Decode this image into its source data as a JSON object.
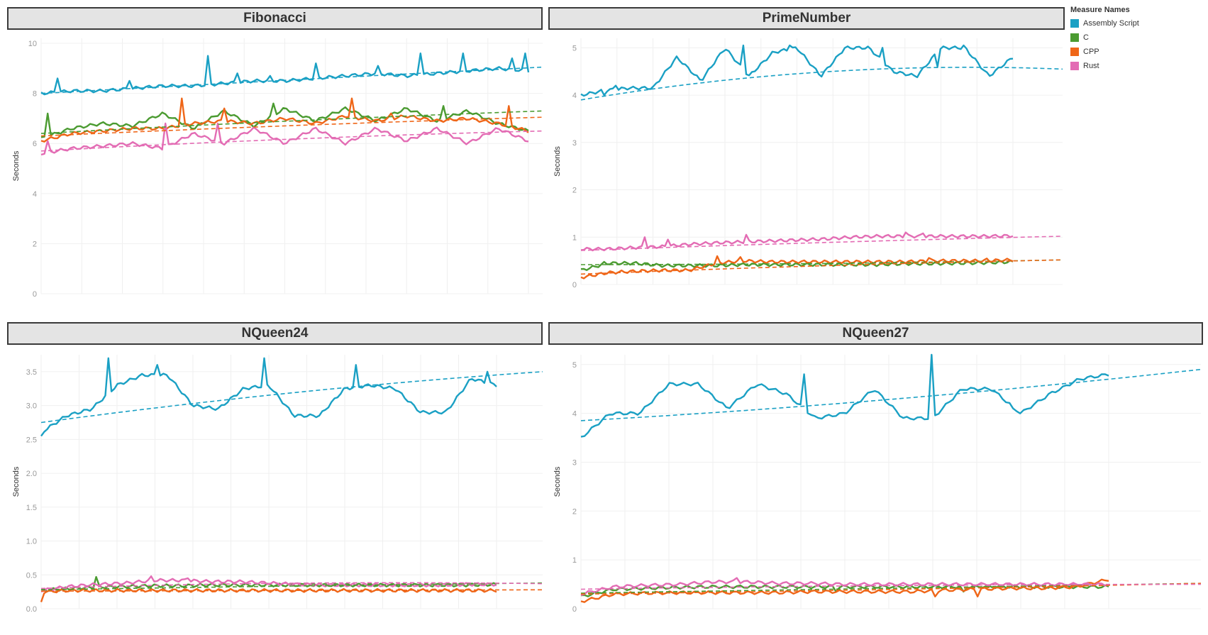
{
  "legend": {
    "title": "Measure Names",
    "items": [
      {
        "label": "Assembly Script",
        "color": "#1aa0c4"
      },
      {
        "label": "C",
        "color": "#4b9b31"
      },
      {
        "label": "CPP",
        "color": "#ef6618"
      },
      {
        "label": "Rust",
        "color": "#e36cb4"
      }
    ]
  },
  "chart_data": [
    {
      "type": "line",
      "title": "Fibonacci",
      "ylabel": "Seconds",
      "xlabel": "",
      "ylim": [
        0,
        10.2
      ],
      "yticks": [
        0,
        2,
        4,
        6,
        8,
        10
      ],
      "tick_decimals": 0,
      "grid": true,
      "trend_lines": true,
      "legend": "top-right",
      "n_points": 150,
      "series": [
        {
          "name": "Assembly Script",
          "base": [
            8.0,
            8.1,
            8.1,
            8.2,
            8.3,
            8.3,
            8.4,
            8.5,
            8.5,
            8.6,
            8.7,
            8.8,
            8.7,
            8.8,
            8.9,
            9.0,
            8.9
          ],
          "spikes": [
            [
              5,
              8.6
            ],
            [
              27,
              8.5
            ],
            [
              51,
              9.5
            ],
            [
              60,
              8.8
            ],
            [
              70,
              8.7
            ],
            [
              84,
              9.2
            ],
            [
              103,
              9.1
            ],
            [
              116,
              9.6
            ],
            [
              129,
              9.6
            ],
            [
              144,
              9.4
            ],
            [
              148,
              9.6
            ]
          ]
        },
        {
          "name": "C",
          "base": [
            6.2,
            6.6,
            6.8,
            6.7,
            7.2,
            6.6,
            7.3,
            6.7,
            7.4,
            6.9,
            7.4,
            6.9,
            7.4,
            6.9,
            7.3,
            6.8,
            6.5
          ],
          "spikes": [
            [
              2,
              7.2
            ],
            [
              71,
              7.6
            ],
            [
              123,
              7.5
            ]
          ]
        },
        {
          "name": "CPP",
          "base": [
            6.1,
            6.4,
            6.5,
            6.6,
            6.6,
            6.8,
            6.9,
            6.8,
            7.0,
            6.8,
            7.1,
            6.9,
            7.1,
            6.9,
            7.0,
            6.8,
            6.5
          ],
          "spikes": [
            [
              43,
              7.8
            ],
            [
              56,
              7.4
            ],
            [
              95,
              7.8
            ],
            [
              107,
              7.2
            ],
            [
              143,
              7.5
            ]
          ]
        },
        {
          "name": "Rust",
          "base": [
            5.6,
            5.8,
            5.9,
            6.0,
            5.8,
            6.4,
            6.0,
            6.6,
            6.0,
            6.6,
            6.0,
            6.6,
            6.1,
            6.6,
            6.0,
            6.6,
            6.1
          ],
          "spikes": [
            [
              2,
              6.1
            ],
            [
              38,
              6.8
            ],
            [
              54,
              6.8
            ]
          ]
        }
      ],
      "trends": [
        {
          "name": "Assembly Script",
          "values": [
            8.0,
            8.55,
            9.05
          ]
        },
        {
          "name": "C",
          "values": [
            6.4,
            6.95,
            7.3
          ]
        },
        {
          "name": "CPP",
          "values": [
            6.3,
            6.75,
            7.05
          ]
        },
        {
          "name": "Rust",
          "values": [
            5.7,
            6.25,
            6.5
          ]
        }
      ]
    },
    {
      "type": "line",
      "title": "PrimeNumber",
      "ylabel": "Seconds",
      "xlabel": "",
      "ylim": [
        0,
        5.2
      ],
      "yticks": [
        0,
        1,
        2,
        3,
        4,
        5
      ],
      "tick_decimals": 0,
      "grid": true,
      "trend_lines": true,
      "n_points": 150,
      "series": [
        {
          "name": "Assembly Script",
          "base": [
            4.0,
            4.1,
            4.15,
            4.15,
            4.8,
            4.3,
            5.0,
            4.4,
            4.9,
            5.0,
            4.4,
            5.0,
            5.0,
            4.5,
            4.4,
            5.0,
            5.0,
            4.4,
            4.8
          ],
          "spikes": [
            [
              8,
              4.0
            ],
            [
              12,
              4.2
            ],
            [
              56,
              5.05
            ],
            [
              72,
              5.05
            ],
            [
              104,
              5.0
            ],
            [
              123,
              4.6
            ],
            [
              132,
              5.05
            ]
          ]
        },
        {
          "name": "C",
          "base": [
            0.3,
            0.45,
            0.45,
            0.4,
            0.4,
            0.4,
            0.42,
            0.42,
            0.42,
            0.42,
            0.42,
            0.42,
            0.44,
            0.44,
            0.45,
            0.46,
            0.48
          ],
          "spikes": [
            [
              8,
              0.48
            ]
          ]
        },
        {
          "name": "CPP",
          "base": [
            0.15,
            0.25,
            0.28,
            0.3,
            0.3,
            0.45,
            0.5,
            0.48,
            0.48,
            0.48,
            0.48,
            0.48,
            0.48,
            0.5,
            0.5,
            0.5,
            0.52
          ],
          "spikes": [
            [
              47,
              0.6
            ],
            [
              55,
              0.58
            ],
            [
              120,
              0.56
            ],
            [
              140,
              0.55
            ]
          ]
        },
        {
          "name": "Rust",
          "base": [
            0.75,
            0.75,
            0.78,
            0.8,
            0.85,
            0.88,
            0.9,
            0.92,
            0.94,
            0.96,
            1.0,
            1.02,
            1.02,
            1.02,
            1.02,
            1.02,
            1.03
          ],
          "spikes": [
            [
              22,
              1.0
            ],
            [
              30,
              0.95
            ],
            [
              57,
              1.05
            ],
            [
              112,
              1.1
            ],
            [
              118,
              1.08
            ]
          ]
        }
      ],
      "trends": [
        {
          "name": "Assembly Script",
          "values": [
            3.9,
            4.75,
            4.55
          ]
        },
        {
          "name": "C",
          "values": [
            0.42,
            0.42,
            0.52
          ]
        },
        {
          "name": "CPP",
          "values": [
            0.22,
            0.42,
            0.52
          ]
        },
        {
          "name": "Rust",
          "values": [
            0.72,
            0.9,
            1.02
          ]
        }
      ]
    },
    {
      "type": "line",
      "title": "NQueen24",
      "ylabel": "Seconds",
      "xlabel": "",
      "ylim": [
        0,
        3.75
      ],
      "yticks": [
        0.0,
        0.5,
        1.0,
        1.5,
        2.0,
        2.5,
        3.0,
        3.5
      ],
      "tick_decimals": 1,
      "grid": true,
      "trend_lines": true,
      "n_points": 150,
      "series": [
        {
          "name": "Assembly Script",
          "base": [
            2.6,
            2.85,
            2.95,
            3.3,
            3.45,
            3.45,
            3.0,
            2.95,
            3.25,
            3.3,
            2.85,
            2.85,
            3.25,
            3.3,
            3.25,
            2.9,
            2.9,
            3.4,
            3.3
          ],
          "spikes": [
            [
              0,
              2.55
            ],
            [
              22,
              3.7
            ],
            [
              38,
              3.6
            ],
            [
              73,
              3.7
            ],
            [
              103,
              3.6
            ],
            [
              146,
              3.5
            ]
          ]
        },
        {
          "name": "C",
          "base": [
            0.27,
            0.3,
            0.32,
            0.33,
            0.34,
            0.34,
            0.35,
            0.35,
            0.35,
            0.35,
            0.35,
            0.35,
            0.35,
            0.35,
            0.35,
            0.35,
            0.36
          ],
          "spikes": [
            [
              18,
              0.47
            ]
          ]
        },
        {
          "name": "CPP",
          "base": [
            0.25,
            0.27,
            0.27,
            0.27,
            0.27,
            0.27,
            0.27,
            0.27,
            0.27,
            0.27,
            0.27,
            0.27,
            0.27,
            0.27,
            0.27,
            0.27,
            0.27
          ],
          "spikes": [
            [
              0,
              0.1
            ]
          ]
        },
        {
          "name": "Rust",
          "base": [
            0.27,
            0.33,
            0.36,
            0.38,
            0.42,
            0.42,
            0.4,
            0.4,
            0.38,
            0.36,
            0.35,
            0.35,
            0.35,
            0.35,
            0.35,
            0.36,
            0.36
          ],
          "spikes": [
            [
              36,
              0.48
            ],
            [
              48,
              0.45
            ]
          ]
        }
      ],
      "trends": [
        {
          "name": "Assembly Script",
          "values": [
            2.75,
            3.25,
            3.5
          ]
        },
        {
          "name": "C",
          "values": [
            0.28,
            0.34,
            0.38
          ]
        },
        {
          "name": "CPP",
          "values": [
            0.26,
            0.27,
            0.28
          ]
        },
        {
          "name": "Rust",
          "values": [
            0.3,
            0.42,
            0.37
          ]
        }
      ]
    },
    {
      "type": "line",
      "title": "NQueen27",
      "ylabel": "Seconds",
      "xlabel": "",
      "ylim": [
        0,
        5.2
      ],
      "yticks": [
        0,
        1,
        2,
        3,
        4,
        5
      ],
      "tick_decimals": 0,
      "grid": true,
      "trend_lines": true,
      "n_points": 150,
      "series": [
        {
          "name": "Assembly Script",
          "base": [
            3.5,
            4.0,
            4.0,
            4.6,
            4.6,
            4.1,
            4.6,
            4.4,
            3.9,
            4.0,
            4.5,
            3.9,
            3.9,
            4.5,
            4.5,
            4.0,
            4.4,
            4.7,
            4.8
          ],
          "spikes": [
            [
              63,
              4.8
            ],
            [
              99,
              5.2
            ],
            [
              122,
              4.1
            ],
            [
              136,
              4.55
            ],
            [
              150,
              4.9
            ]
          ]
        },
        {
          "name": "C",
          "base": [
            0.25,
            0.4,
            0.42,
            0.44,
            0.45,
            0.45,
            0.45,
            0.45,
            0.45,
            0.45,
            0.45,
            0.45,
            0.45,
            0.45,
            0.45,
            0.45,
            0.45
          ],
          "spikes": [
            [
              72,
              0.35
            ],
            [
              108,
              0.35
            ],
            [
              150,
              0.4
            ]
          ]
        },
        {
          "name": "CPP",
          "base": [
            0.15,
            0.3,
            0.32,
            0.33,
            0.33,
            0.33,
            0.33,
            0.35,
            0.35,
            0.35,
            0.35,
            0.38,
            0.4,
            0.42,
            0.42,
            0.45,
            0.6
          ],
          "spikes": [
            [
              100,
              0.25
            ],
            [
              112,
              0.25
            ]
          ]
        },
        {
          "name": "Rust",
          "base": [
            0.3,
            0.45,
            0.48,
            0.5,
            0.55,
            0.55,
            0.52,
            0.52,
            0.5,
            0.5,
            0.5,
            0.5,
            0.5,
            0.5,
            0.5,
            0.5,
            0.5
          ],
          "spikes": [
            [
              44,
              0.63
            ]
          ]
        }
      ],
      "trends": [
        {
          "name": "Assembly Script",
          "values": [
            3.85,
            4.2,
            4.9
          ]
        },
        {
          "name": "C",
          "values": [
            0.32,
            0.42,
            0.52
          ]
        },
        {
          "name": "CPP",
          "values": [
            0.3,
            0.38,
            0.52
          ]
        },
        {
          "name": "Rust",
          "values": [
            0.4,
            0.5,
            0.5
          ]
        }
      ]
    }
  ]
}
